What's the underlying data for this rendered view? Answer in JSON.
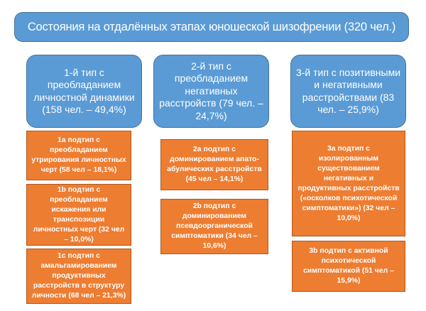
{
  "title": "Состояния на  отдалённых этапах юношеской шизофрении (320 чел.)",
  "types": [
    {
      "label": "1-й тип с преобладанием личностной динамики (158 чел. – 49,4%)",
      "subtypes": [
        "1а подтип с преобладанием утрирования личностных черт (58 чел – 18,1%)",
        "1b подтип с преобладанием искажения или транспозиции личностных черт (32 чел   – 10,0%)",
        "1с подтип с амальгамированием продуктивных расстройств в структуру личности (68 чел  – 21,3%)"
      ]
    },
    {
      "label": "2-й тип с преобладанием негативных расстройств (79 чел. – 24,7%)",
      "subtypes": [
        "2а подтип с доминированием  апато-абулических расстройств (45 чел – 14,1%)",
        "2b подтип с доминированием псевдоорганической симптоматики (34 чел  – 10,6%)"
      ]
    },
    {
      "label": "3-й тип с позитивными и негативными расстройствами (83 чел. – 25,9%)",
      "subtypes": [
        "3а подтип с изолированным существованием негативных и продуктивных расстройств («осколков психотической симптоматики») (32 чел   – 10,0%)",
        "3b подтип с активной психотической симптоматикой (51 чел  – 15,9%)"
      ]
    }
  ]
}
